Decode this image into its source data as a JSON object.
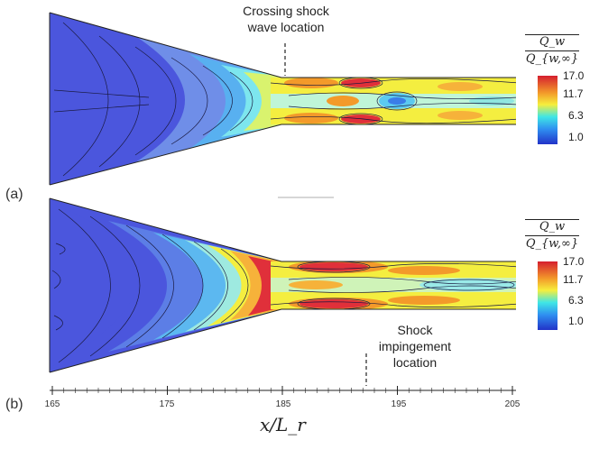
{
  "panels": [
    {
      "label": "(a)",
      "annotation_lines": [
        "Crossing shock",
        "wave location"
      ]
    },
    {
      "label": "(b)",
      "annotation_lines": [
        "Shock",
        "impingement",
        "location"
      ]
    }
  ],
  "colorbar": {
    "title_numerator": "Q_w",
    "title_denominator": "Q_{w,∞}",
    "ticks": [
      "17.0",
      "11.7",
      "6.3",
      "1.0"
    ],
    "colors": [
      "#e0303a",
      "#f6ee3c",
      "#34c6f0",
      "#2233c8"
    ]
  },
  "x_axis": {
    "ticks": [
      "165",
      "175",
      "185",
      "195",
      "205"
    ],
    "title": "x/L_r"
  }
}
